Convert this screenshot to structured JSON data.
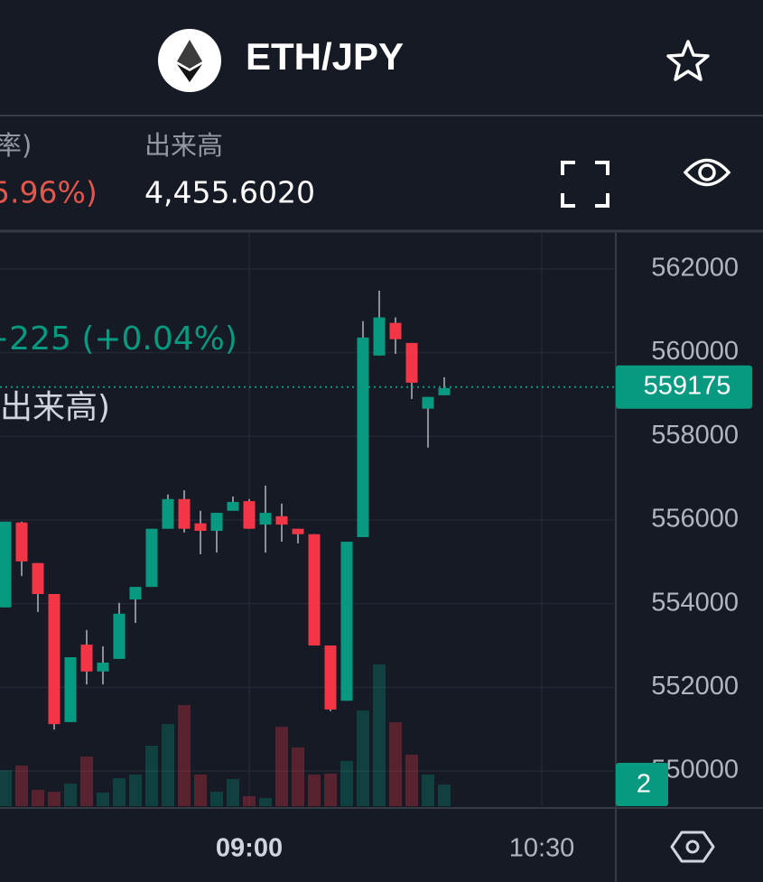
{
  "header": {
    "pair": "ETH/JPY"
  },
  "stats": {
    "change_label": "率)",
    "change_value": "5.96%)",
    "volume_label": "出来高",
    "volume_value": "4,455.6020"
  },
  "chart_data": {
    "type": "candlestick",
    "legend_change": "+225 (+0.04%)",
    "legend_volume": "出来高)",
    "open": [
      553910,
      555940,
      554970,
      554230,
      551170,
      553020,
      552380,
      552680,
      554100,
      554400,
      555790,
      556500,
      555920,
      555740,
      556220,
      556450,
      555890,
      556090,
      555790,
      555660,
      553000,
      551680,
      555590,
      559930,
      560710,
      560230,
      558660,
      558980
    ],
    "high": [
      555960,
      555960,
      554970,
      554230,
      552720,
      553370,
      552980,
      554020,
      554400,
      555790,
      556610,
      556710,
      556220,
      556170,
      556560,
      556500,
      556820,
      556390,
      555790,
      555660,
      553000,
      555480,
      560750,
      561480,
      560840,
      560230,
      558940,
      559410
    ],
    "low": [
      553910,
      554660,
      553800,
      550990,
      551170,
      552070,
      552070,
      552680,
      553540,
      554400,
      555790,
      555700,
      555180,
      555220,
      556220,
      555790,
      555220,
      555480,
      555440,
      553000,
      551430,
      551680,
      555590,
      559930,
      559970,
      558890,
      557730,
      558980
    ],
    "close": [
      555960,
      555010,
      554230,
      551120,
      552720,
      552380,
      552590,
      553760,
      554400,
      555790,
      556500,
      555790,
      555740,
      556170,
      556430,
      555790,
      556170,
      555890,
      555660,
      553000,
      551470,
      555480,
      560360,
      560840,
      560320,
      559280,
      558940,
      559150
    ],
    "volume": [
      40,
      45,
      18,
      16,
      25,
      55,
      15,
      31,
      35,
      67,
      91,
      112,
      35,
      16,
      30,
      11,
      9,
      88,
      65,
      35,
      36,
      50,
      106,
      157,
      93,
      57,
      35,
      24
    ],
    "up_color": "#089981",
    "down_color": "#f23645",
    "ylim": [
      549160,
      562860
    ],
    "yticks": [
      550000,
      552000,
      554000,
      556000,
      558000,
      560000,
      562000
    ],
    "last_price": 559175,
    "last_volume": 2,
    "time_labels": [
      "09:00",
      "10:30"
    ]
  }
}
